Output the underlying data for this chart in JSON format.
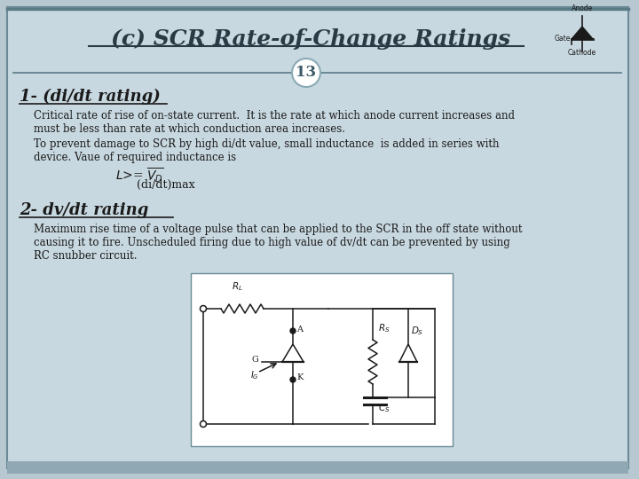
{
  "title": "(c) SCR Rate-of-Change Ratings",
  "slide_bg": "#b8c8d0",
  "content_bg": "#c8d8e0",
  "footer_bg": "#90a8b4",
  "title_color": "#2a3a44",
  "text_color": "#1a1a1a",
  "heading1": "1- (di/dt rating)",
  "badge_number": "13",
  "para1_line1": "Critical rate of rise of on-state current.  It is the rate at which anode current increases and",
  "para1_line2": "must be less than rate at which conduction area increases.",
  "para2_line1": "To prevent damage to SCR by high di/dt value, small inductance  is added in series with",
  "para2_line2": "device. Vaue of required inductance is",
  "heading2": "2- dv/dt rating",
  "para3_line1": "Maximum rise time of a voltage pulse that can be applied to the SCR in the off state without",
  "para3_line2": "causing it to fire. Unscheduled firing due to high value of dv/dt can be prevented by using",
  "para3_line3": "RC snubber circuit."
}
